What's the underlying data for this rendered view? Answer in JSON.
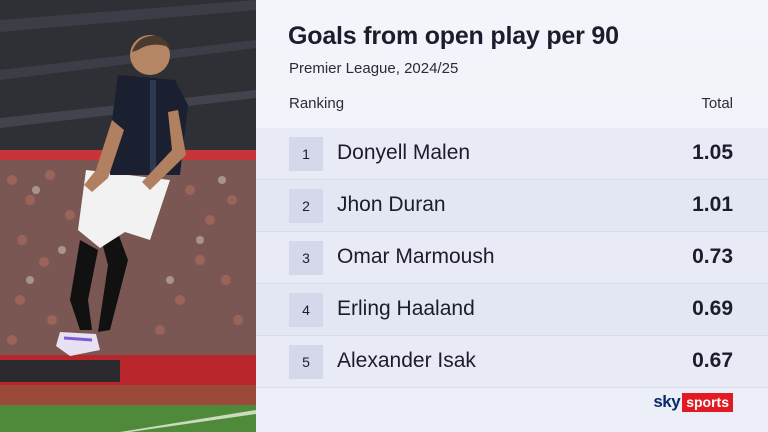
{
  "graphic": {
    "title": "Goals from open play per 90",
    "subtitle": "Premier League, 2024/25",
    "columns": {
      "ranking": "Ranking",
      "total": "Total"
    },
    "rows": [
      {
        "rank": "1",
        "player": "Donyell Malen",
        "value": "1.05"
      },
      {
        "rank": "2",
        "player": "Jhon Duran",
        "value": "1.01"
      },
      {
        "rank": "3",
        "player": "Omar Marmoush",
        "value": "0.73"
      },
      {
        "rank": "4",
        "player": "Erling Haaland",
        "value": "0.69"
      },
      {
        "rank": "5",
        "player": "Alexander Isak",
        "value": "0.67"
      }
    ]
  },
  "logo": {
    "brand": "sky",
    "product": "sports"
  },
  "colors": {
    "logo_red": "#e21b23",
    "logo_navy": "#0a2a6b",
    "text_dark": "#1c1d2b",
    "card_bg": "#eceef8"
  }
}
